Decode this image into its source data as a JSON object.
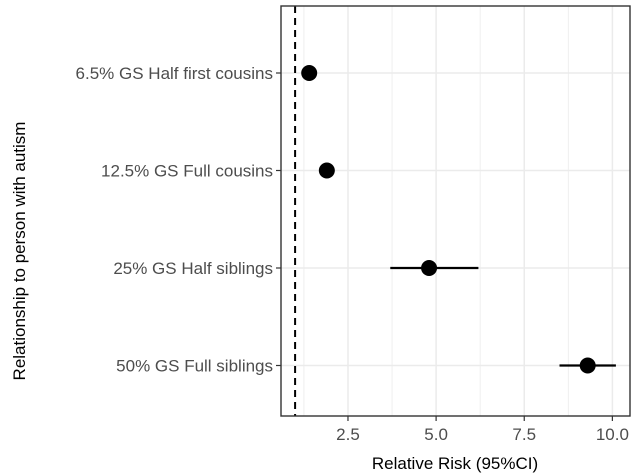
{
  "chart_data": {
    "type": "scatter",
    "subtype": "forest-plot",
    "title": "",
    "xlabel": "Relative Risk (95%CI)",
    "ylabel": "Relationship to person with autism",
    "categories": [
      "6.5% GS Half first cousins",
      "12.5% GS Full cousins",
      "25% GS Half siblings",
      "50% GS Full siblings"
    ],
    "points": [
      {
        "category": "6.5% GS Half first cousins",
        "estimate": 1.4,
        "ci_low": 1.3,
        "ci_high": 1.5
      },
      {
        "category": "12.5% GS Full cousins",
        "estimate": 1.9,
        "ci_low": 1.7,
        "ci_high": 2.1
      },
      {
        "category": "25% GS Half siblings",
        "estimate": 4.8,
        "ci_low": 3.7,
        "ci_high": 6.2
      },
      {
        "category": "50% GS Full siblings",
        "estimate": 9.3,
        "ci_low": 8.5,
        "ci_high": 10.1
      }
    ],
    "reference_line": {
      "x": 1.0,
      "style": "dashed"
    },
    "xlim": [
      0.6,
      10.5
    ],
    "xticks": [
      2.5,
      5.0,
      7.5,
      10.0
    ],
    "xtick_labels": [
      "2.5",
      "5.0",
      "7.5",
      "10.0"
    ],
    "grid": true,
    "legend": "none",
    "colors": {
      "point": "#000000",
      "grid": "#ebebeb",
      "panel_border": "#333333",
      "tick_label": "#4d4d4d"
    }
  }
}
